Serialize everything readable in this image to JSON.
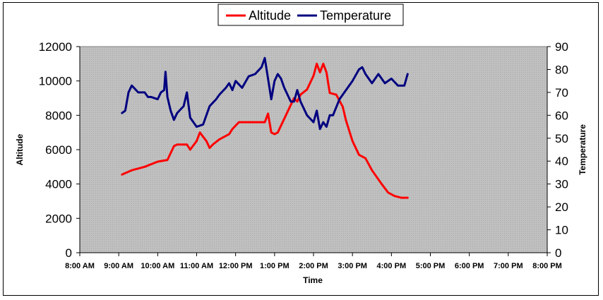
{
  "chart_data": {
    "type": "line",
    "title": "",
    "xlabel": "Time",
    "ylabel": "Altitude",
    "y2label": "Temperature",
    "xlim": [
      "8:00 AM",
      "8:00 PM"
    ],
    "ylim": [
      0,
      12000
    ],
    "y2lim": [
      0,
      90
    ],
    "x_ticks": [
      "8:00 AM",
      "9:00 AM",
      "10:00 AM",
      "11:00 AM",
      "12:00 PM",
      "1:00 PM",
      "2:00 PM",
      "3:00 PM",
      "4:00 PM",
      "5:00 PM",
      "6:00 PM",
      "7:00 PM",
      "8:00 PM"
    ],
    "y_ticks": [
      0,
      2000,
      4000,
      6000,
      8000,
      10000,
      12000
    ],
    "y2_ticks": [
      0,
      10,
      20,
      30,
      40,
      50,
      60,
      70,
      80,
      90
    ],
    "legend_position": "top-center",
    "grid": false,
    "plot_background": "#c0c0c0",
    "series": [
      {
        "name": "Altitude",
        "axis": "left",
        "color": "#ff0000",
        "x": [
          "9:05",
          "9:20",
          "9:40",
          "10:00",
          "10:15",
          "10:25",
          "10:30",
          "10:45",
          "10:50",
          "11:00",
          "11:05",
          "11:15",
          "11:20",
          "11:25",
          "11:35",
          "11:50",
          "11:55",
          "12:05",
          "12:20",
          "12:40",
          "12:45",
          "12:50",
          "12:55",
          "13:00",
          "13:05",
          "13:15",
          "13:30",
          "13:35",
          "13:40",
          "13:50",
          "14:00",
          "14:05",
          "14:10",
          "14:15",
          "14:20",
          "14:25",
          "14:35",
          "14:45",
          "14:50",
          "15:00",
          "15:10",
          "15:20",
          "15:30",
          "15:45",
          "15:55",
          "16:05",
          "16:15",
          "16:25"
        ],
        "y": [
          4550,
          4800,
          5000,
          5300,
          5400,
          6200,
          6300,
          6300,
          6000,
          6500,
          7000,
          6500,
          6100,
          6300,
          6600,
          6900,
          7200,
          7600,
          7600,
          7600,
          7600,
          8100,
          7000,
          6900,
          7000,
          7800,
          9000,
          8800,
          9200,
          9500,
          10300,
          11000,
          10500,
          11000,
          10500,
          9300,
          9200,
          8500,
          7700,
          6500,
          5700,
          5500,
          4800,
          4000,
          3500,
          3300,
          3200,
          3200
        ]
      },
      {
        "name": "Temperature",
        "axis": "right",
        "color": "#000080",
        "x": [
          "9:05",
          "9:10",
          "9:15",
          "9:20",
          "9:30",
          "9:40",
          "9:45",
          "9:50",
          "10:00",
          "10:05",
          "10:10",
          "10:12",
          "10:15",
          "10:20",
          "10:25",
          "10:30",
          "10:40",
          "10:45",
          "10:50",
          "11:00",
          "11:10",
          "11:15",
          "11:20",
          "11:30",
          "11:35",
          "11:45",
          "11:50",
          "11:55",
          "12:00",
          "12:10",
          "12:20",
          "12:30",
          "12:40",
          "12:45",
          "12:50",
          "12:55",
          "13:00",
          "13:05",
          "13:10",
          "13:15",
          "13:25",
          "13:30",
          "13:35",
          "13:40",
          "13:50",
          "14:00",
          "14:05",
          "14:10",
          "14:15",
          "14:20",
          "14:25",
          "14:30",
          "14:40",
          "14:50",
          "15:00",
          "15:10",
          "15:15",
          "15:20",
          "15:30",
          "15:40",
          "15:50",
          "16:00",
          "16:10",
          "16:20",
          "16:25"
        ],
        "y": [
          61,
          62,
          70,
          73,
          70,
          70,
          68,
          68,
          67,
          70,
          71,
          79,
          68,
          62,
          58,
          61,
          64,
          70,
          59,
          55,
          56,
          60,
          64,
          67,
          69,
          72,
          74,
          71,
          75,
          72,
          77,
          78,
          81,
          85,
          76,
          67,
          75,
          78,
          76,
          72,
          66,
          66,
          71,
          66,
          60,
          57,
          62,
          54,
          57,
          55,
          60,
          60,
          67,
          71,
          75,
          80,
          81,
          78,
          74,
          78,
          74,
          76,
          73,
          73,
          78
        ]
      }
    ]
  }
}
